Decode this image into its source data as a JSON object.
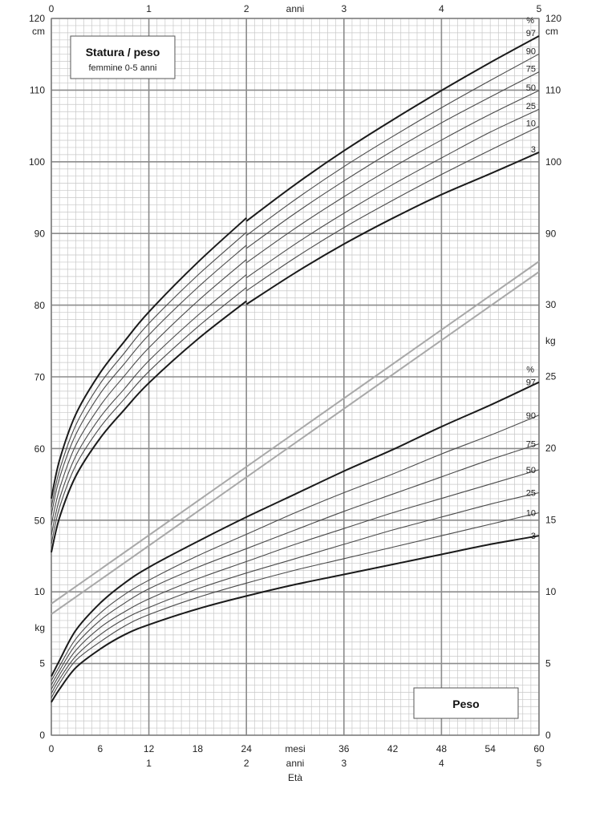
{
  "chart_data": {
    "type": "line",
    "title": "Statura / peso",
    "subtitle": "femmine  0-5 anni",
    "panel_label": "Peso",
    "top_axis": {
      "unit": "anni",
      "ticks": [
        "0",
        "1",
        "2",
        "3",
        "4",
        "5"
      ]
    },
    "bottom_axis": {
      "months_label": "mesi",
      "years_label": "anni",
      "xlabel": "Età",
      "month_ticks": [
        "0",
        "6",
        "12",
        "18",
        "24",
        "36",
        "42",
        "48",
        "54",
        "60"
      ],
      "year_ticks": [
        "1",
        "2",
        "3",
        "4",
        "5"
      ]
    },
    "height_axis": {
      "unit": "cm",
      "ylim": [
        40,
        120
      ],
      "ticks_left": [
        "120",
        "110",
        "100",
        "90",
        "80",
        "70",
        "60",
        "50"
      ],
      "ticks_right": [
        "120",
        "110",
        "100",
        "90"
      ]
    },
    "weight_axis": {
      "unit": "kg",
      "ylim": [
        0,
        35
      ],
      "ticks_left": [
        "10",
        "5",
        "0"
      ],
      "ticks_right": [
        "30",
        "25",
        "20",
        "15",
        "10",
        "5",
        "0"
      ]
    },
    "percentile_symbol": "%",
    "height_series": [
      {
        "name": "97",
        "x": [
          0,
          1,
          3,
          6,
          9,
          12,
          18,
          24,
          30,
          36,
          42,
          48,
          54,
          60
        ],
        "y": [
          53.1,
          58.4,
          64.8,
          70.6,
          75.0,
          79.1,
          86.0,
          92.2,
          97.3,
          102.0,
          106.3,
          110.4,
          114.3,
          118.0
        ]
      },
      {
        "name": "90",
        "x": [
          0,
          1,
          3,
          6,
          9,
          12,
          18,
          24,
          30,
          36,
          42,
          48,
          54,
          60
        ],
        "y": [
          51.9,
          57.0,
          63.3,
          69.1,
          73.4,
          77.5,
          84.2,
          90.2,
          95.2,
          99.8,
          104.0,
          108.0,
          111.8,
          115.5
        ]
      },
      {
        "name": "75",
        "x": [
          0,
          1,
          3,
          6,
          9,
          12,
          18,
          24,
          30,
          36,
          42,
          48,
          54,
          60
        ],
        "y": [
          50.8,
          55.9,
          62.0,
          67.7,
          71.9,
          75.9,
          82.5,
          88.4,
          93.3,
          97.8,
          102.0,
          105.9,
          109.5,
          113.0
        ]
      },
      {
        "name": "50",
        "x": [
          0,
          1,
          3,
          6,
          9,
          12,
          18,
          24,
          30,
          36,
          42,
          48,
          54,
          60
        ],
        "y": [
          49.4,
          54.4,
          60.5,
          66.0,
          70.2,
          74.1,
          80.6,
          86.4,
          91.2,
          95.6,
          99.7,
          103.5,
          107.1,
          110.4
        ]
      },
      {
        "name": "25",
        "x": [
          0,
          1,
          3,
          6,
          9,
          12,
          18,
          24,
          30,
          36,
          42,
          48,
          54,
          60
        ],
        "y": [
          48.0,
          53.0,
          59.0,
          64.4,
          68.4,
          72.3,
          78.6,
          84.3,
          89.0,
          93.3,
          97.3,
          101.0,
          104.6,
          107.8
        ]
      },
      {
        "name": "10",
        "x": [
          0,
          1,
          3,
          6,
          9,
          12,
          18,
          24,
          30,
          36,
          42,
          48,
          54,
          60
        ],
        "y": [
          46.8,
          51.8,
          57.7,
          63.0,
          67.0,
          70.8,
          77.0,
          82.5,
          87.1,
          91.3,
          95.1,
          98.7,
          102.1,
          105.4
        ]
      },
      {
        "name": "3",
        "x": [
          0,
          1,
          3,
          6,
          9,
          12,
          18,
          24,
          30,
          36,
          42,
          48,
          54,
          60
        ],
        "y": [
          45.6,
          50.4,
          56.2,
          61.5,
          65.5,
          69.2,
          75.3,
          80.6,
          85.0,
          89.0,
          92.6,
          95.9,
          98.8,
          101.8
        ]
      }
    ],
    "weight_series": [
      {
        "name": "97",
        "x": [
          0,
          1,
          3,
          6,
          9,
          12,
          18,
          24,
          30,
          36,
          42,
          48,
          54,
          60
        ],
        "y": [
          4.1,
          5.2,
          7.3,
          9.2,
          10.6,
          11.7,
          13.5,
          15.2,
          16.8,
          18.4,
          19.9,
          21.5,
          23.0,
          24.6
        ]
      },
      {
        "name": "90",
        "x": [
          0,
          1,
          3,
          6,
          9,
          12,
          18,
          24,
          30,
          36,
          42,
          48,
          54,
          60
        ],
        "y": [
          3.8,
          4.8,
          6.7,
          8.5,
          9.8,
          10.8,
          12.5,
          14.0,
          15.5,
          16.9,
          18.2,
          19.6,
          20.9,
          22.3
        ]
      },
      {
        "name": "75",
        "x": [
          0,
          1,
          3,
          6,
          9,
          12,
          18,
          24,
          30,
          36,
          42,
          48,
          54,
          60
        ],
        "y": [
          3.5,
          4.5,
          6.3,
          8.0,
          9.2,
          10.2,
          11.7,
          13.0,
          14.3,
          15.6,
          16.8,
          18.0,
          19.2,
          20.3
        ]
      },
      {
        "name": "50",
        "x": [
          0,
          1,
          3,
          6,
          9,
          12,
          18,
          24,
          30,
          36,
          42,
          48,
          54,
          60
        ],
        "y": [
          3.2,
          4.2,
          5.9,
          7.5,
          8.6,
          9.5,
          10.9,
          12.1,
          13.3,
          14.4,
          15.5,
          16.5,
          17.5,
          18.5
        ]
      },
      {
        "name": "25",
        "x": [
          0,
          1,
          3,
          6,
          9,
          12,
          18,
          24,
          30,
          36,
          42,
          48,
          54,
          60
        ],
        "y": [
          2.9,
          3.9,
          5.5,
          7.0,
          8.1,
          8.9,
          10.2,
          11.3,
          12.3,
          13.3,
          14.3,
          15.2,
          16.1,
          16.9
        ]
      },
      {
        "name": "10",
        "x": [
          0,
          1,
          3,
          6,
          9,
          12,
          18,
          24,
          30,
          36,
          42,
          48,
          54,
          60
        ],
        "y": [
          2.6,
          3.6,
          5.2,
          6.5,
          7.6,
          8.4,
          9.6,
          10.6,
          11.5,
          12.3,
          13.1,
          13.9,
          14.7,
          15.5
        ]
      },
      {
        "name": "3",
        "x": [
          0,
          1,
          3,
          6,
          9,
          12,
          18,
          24,
          30,
          36,
          42,
          48,
          54,
          60
        ],
        "y": [
          2.3,
          3.2,
          4.7,
          6.0,
          7.0,
          7.7,
          8.8,
          9.7,
          10.5,
          11.2,
          11.9,
          12.6,
          13.3,
          13.9
        ]
      }
    ],
    "colors": {
      "grid_minor": "#c8c8c8",
      "grid_major": "#8c8c8c",
      "curve_outer": "#1a1a1a",
      "curve_inner": "#4a4a4a",
      "separator": "#a8a8a8"
    },
    "grid": true
  }
}
